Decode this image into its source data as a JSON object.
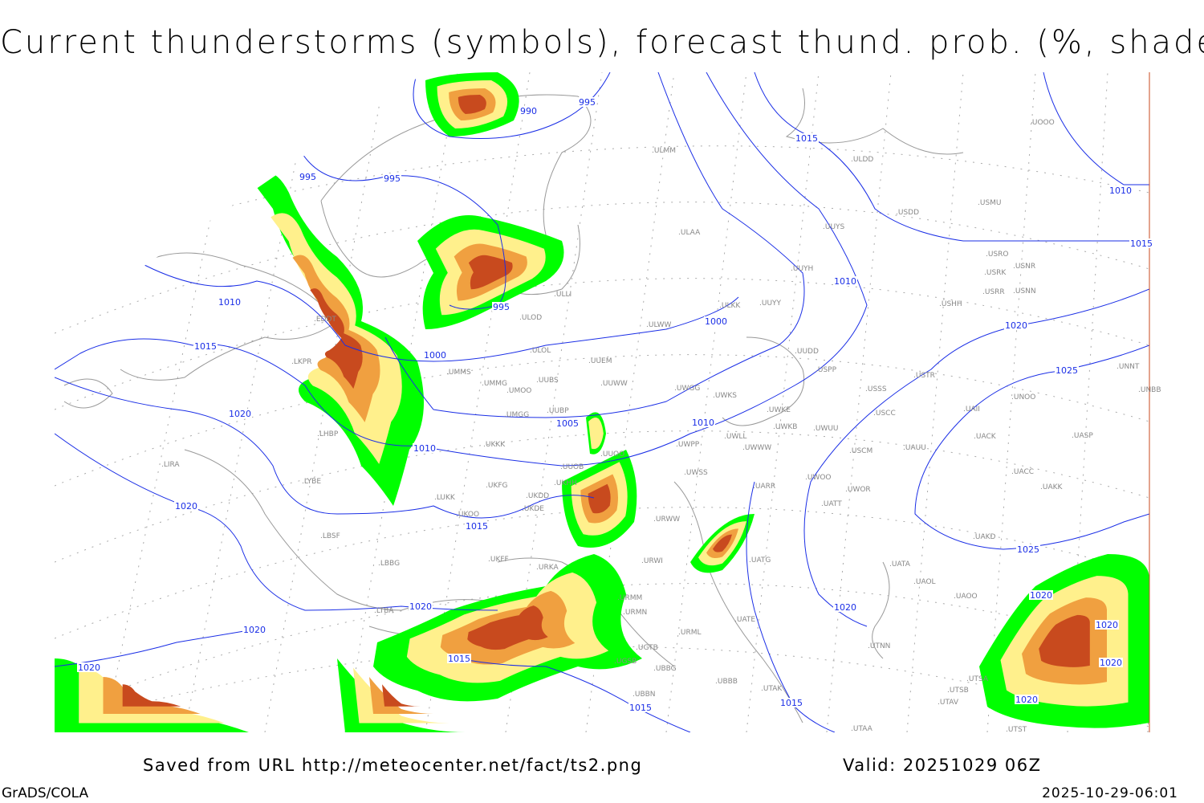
{
  "title": "Current thunderstorms (symbols), forecast thund. prob. (%, shaded)",
  "footer": {
    "saved": "Saved from URL http://meteocenter.net/fact/ts2.png",
    "valid": "Valid: 20251029 06Z",
    "software": "GrADS/COLA",
    "timestamp": "2025-10-29-06:01"
  },
  "colors": {
    "isobar": "#1a2ee6",
    "coastline": "#999999",
    "prob_low": "#00ff00",
    "prob_mid": "#fff08c",
    "prob_high": "#f0a040",
    "prob_max": "#c84a1e",
    "station_label": "#888888"
  },
  "stations": [
    "ULMM",
    "ULDD",
    "USDD",
    "USMU",
    "UOOO",
    "ULAA",
    "UUYS",
    "USRO",
    "USRK",
    "USNR",
    "USRR",
    "USNN",
    "UUYH",
    "ULKK",
    "UUYY",
    "USHH",
    "ULOD",
    "ULWW",
    "UUEM",
    "ULOL",
    "UMMS",
    "UMMG",
    "UMOO",
    "UUBS",
    "UUWW",
    "UWGG",
    "UWKS",
    "USPP",
    "USTR",
    "USSS",
    "UNNT",
    "UNBB",
    "UMGG",
    "UUBP",
    "UWKE",
    "USCC",
    "UNOO",
    "UACK",
    "UASP",
    "UWKB",
    "UWUU",
    "UWLL",
    "UWWW",
    "UWPP",
    "UUOO",
    "USCM",
    "UAUU",
    "UKKK",
    "UUOB",
    "UWSS",
    "UACC",
    "UAKK",
    "UWOO",
    "UWOR",
    "UARR",
    "UKHH",
    "UKDD",
    "UKDE",
    "UKFG",
    "LUKK",
    "UKOO",
    "UATT",
    "URWW",
    "URWI",
    "UATG",
    "UAKD",
    "LBSF",
    "LBBG",
    "UKFF",
    "URKA",
    "LYBE",
    "LIRA",
    "LHBP",
    "LKPR",
    "EDDT",
    "UATA",
    "UAOL",
    "UAOO",
    "URMM",
    "URMN",
    "UATE",
    "URML",
    "LTBA",
    "UGTB",
    "UGSB",
    "UBBG",
    "UBBB",
    "UTAK",
    "UTNN",
    "UTSB",
    "UTSA",
    "UTAV",
    "UTAA",
    "UTST",
    "UBBN",
    "ULLI",
    "UUDD",
    "UAII"
  ],
  "isobar_labels": [
    "990",
    "995",
    "995",
    "995",
    "995",
    "1015",
    "1010",
    "1015",
    "1010",
    "1000",
    "1000",
    "1005",
    "1010",
    "1010",
    "1010",
    "1015",
    "1020",
    "1020",
    "1015",
    "1020",
    "1025",
    "1025",
    "1020",
    "1020",
    "1020",
    "1015",
    "1020",
    "1015",
    "1015",
    "1020",
    "1020",
    "1020",
    "1020"
  ]
}
